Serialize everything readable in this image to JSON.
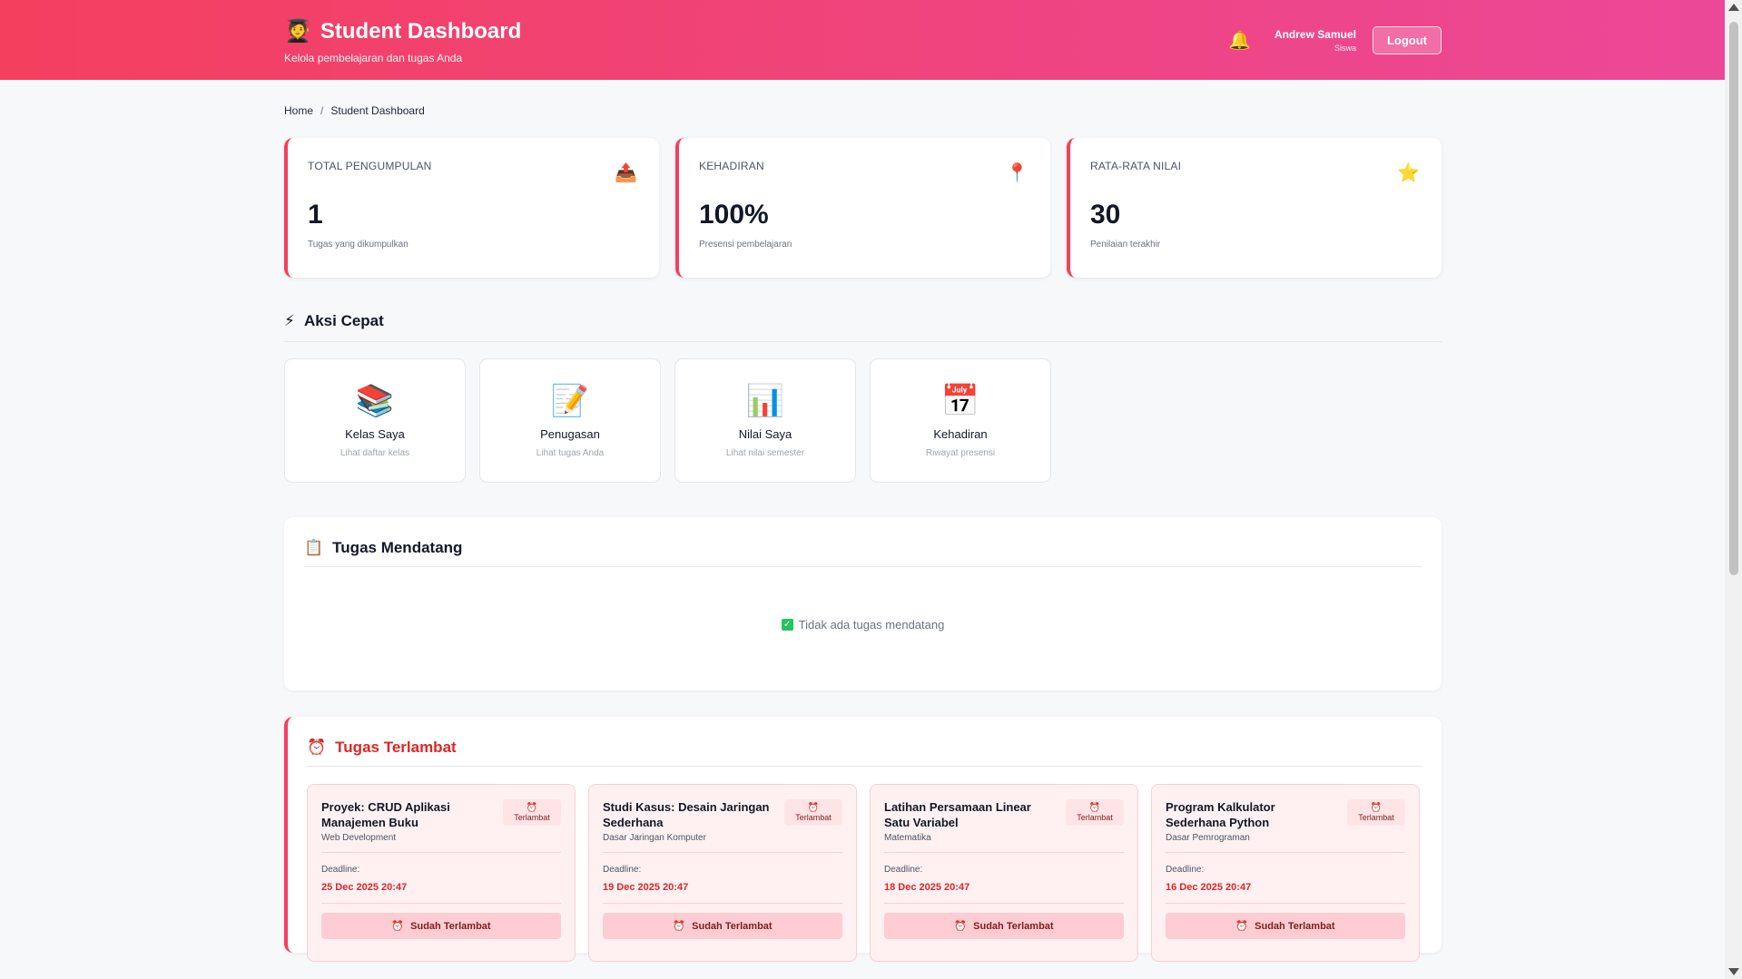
{
  "header": {
    "icon": "🧑‍🎓",
    "title": "Student Dashboard",
    "subtitle": "Kelola pembelajaran dan tugas Anda",
    "bell_icon": "🔔",
    "user_name": "Andrew Samuel",
    "user_role": "Siswa",
    "logout_label": "Logout"
  },
  "breadcrumb": {
    "home": "Home",
    "separator": "/",
    "current": "Student Dashboard"
  },
  "stats": [
    {
      "label": "TOTAL PENGUMPULAN",
      "icon": "📤",
      "value": "1",
      "desc": "Tugas yang dikumpulkan"
    },
    {
      "label": "KEHADIRAN",
      "icon": "📍",
      "value": "100%",
      "desc": "Presensi pembelajaran"
    },
    {
      "label": "RATA-RATA NILAI",
      "icon": "⭐",
      "value": "30",
      "desc": "Penilaian terakhir"
    }
  ],
  "quick_actions": {
    "icon": "⚡",
    "title": "Aksi Cepat",
    "items": [
      {
        "icon": "📚",
        "label": "Kelas Saya",
        "sub": "Lihat daftar kelas"
      },
      {
        "icon": "📝",
        "label": "Penugasan",
        "sub": "Lihat tugas Anda"
      },
      {
        "icon": "📊",
        "label": "Nilai Saya",
        "sub": "Lihat nilai semester"
      },
      {
        "icon": "📅",
        "label": "Kehadiran",
        "sub": "Riwayat presensi"
      }
    ]
  },
  "upcoming": {
    "icon": "📋",
    "title": "Tugas Mendatang",
    "empty_icon": "✓",
    "empty_text": "Tidak ada tugas mendatang"
  },
  "late": {
    "icon": "⏰",
    "title": "Tugas Terlambat",
    "badge_icon": "⏰",
    "badge_label": "Terlambat",
    "deadline_label": "Deadline:",
    "button_icon": "⏰",
    "button_label": "Sudah Terlambat",
    "items": [
      {
        "name": "Proyek: CRUD Aplikasi Manajemen Buku",
        "subject": "Web Development",
        "deadline": "25 Dec 2025 20:47"
      },
      {
        "name": "Studi Kasus: Desain Jaringan Sederhana",
        "subject": "Dasar Jaringan Komputer",
        "deadline": "19 Dec 2025 20:47"
      },
      {
        "name": "Latihan Persamaan Linear Satu Variabel",
        "subject": "Matematika",
        "deadline": "18 Dec 2025 20:47"
      },
      {
        "name": "Program Kalkulator Sederhana Python",
        "subject": "Dasar Pemrograman",
        "deadline": "16 Dec 2025 20:47"
      }
    ]
  }
}
